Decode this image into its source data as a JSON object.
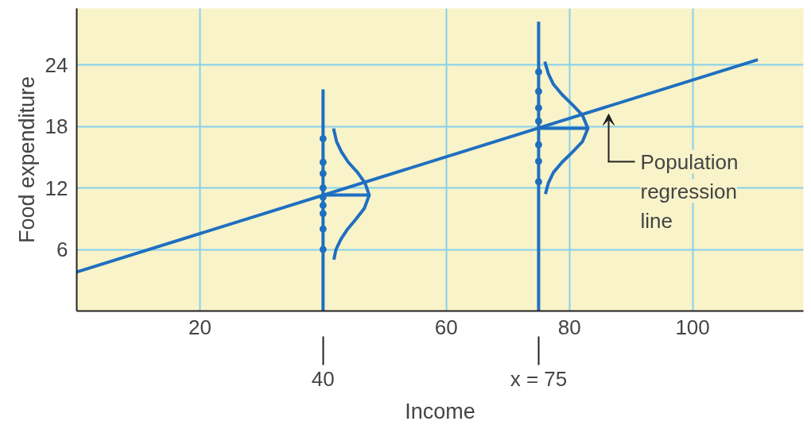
{
  "chart_data": {
    "type": "line",
    "xlabel": "Income",
    "ylabel": "Food expenditure",
    "xlim": [
      0,
      118
    ],
    "ylim": [
      0,
      29.5
    ],
    "xticks": [
      20,
      60,
      80,
      100
    ],
    "yticks": [
      6,
      12,
      18,
      24
    ],
    "grid": true,
    "series": [
      {
        "color": "#1f6fc0",
        "x": [
          0,
          110.6
        ],
        "values": [
          3.8,
          24.5
        ]
      },
      {
        "type": "line",
        "color": "#1f6fc0",
        "x": [
          40,
          40
        ],
        "values": [
          0,
          21.6
        ]
      },
      {
        "type": "line",
        "color": "#1f6fc0",
        "x": [
          75,
          75
        ],
        "values": [
          0,
          28.2
        ]
      },
      {
        "type": "line",
        "color": "#1f6fc0",
        "x": [
          40,
          47.5
        ],
        "values": [
          11.3,
          11.3
        ]
      },
      {
        "type": "line",
        "color": "#1f6fc0",
        "x": [
          75,
          83.0
        ],
        "values": [
          17.8,
          17.8
        ]
      },
      {
        "type": "line",
        "color": "#1f6fc0",
        "x": [
          41.75,
          42.1,
          42.9,
          44.0,
          45.4,
          46.7,
          47.5,
          46.8,
          45.6,
          44.1,
          43.0,
          42.2,
          41.7
        ],
        "values": [
          5,
          6,
          7,
          8,
          9,
          10,
          11.3,
          12.5,
          13.5,
          14.5,
          15.5,
          16.5,
          17.8
        ]
      },
      {
        "type": "line",
        "color": "#1f6fc0",
        "x": [
          76.1,
          76.6,
          77.4,
          78.8,
          80.5,
          82.1,
          83.0,
          82.1,
          80.5,
          78.8,
          77.4,
          76.6,
          76.0
        ],
        "values": [
          11.4,
          12.5,
          13.5,
          14.5,
          15.5,
          16.5,
          17.8,
          19.1,
          20.1,
          21.1,
          22.1,
          23.1,
          24.3
        ]
      },
      {
        "type": "scatter",
        "color": "#1f6fc0",
        "marker": "circle",
        "x": [
          40,
          40,
          40,
          40,
          40,
          40,
          40,
          40,
          40
        ],
        "values": [
          16.8,
          14.5,
          13.4,
          12.0,
          11.1,
          10.3,
          9.5,
          8.0,
          6.0
        ]
      },
      {
        "type": "scatter",
        "color": "#1f6fc0",
        "marker": "circle",
        "x": [
          75,
          75,
          75,
          75,
          75,
          75,
          75
        ],
        "values": [
          23.3,
          21.4,
          19.8,
          18.5,
          16.2,
          14.6,
          12.6
        ]
      }
    ],
    "annotations": [
      "Population\nregression\nline",
      {
        "text": "40",
        "x": 40
      },
      {
        "text": "x = 75",
        "x": 75
      }
    ]
  }
}
